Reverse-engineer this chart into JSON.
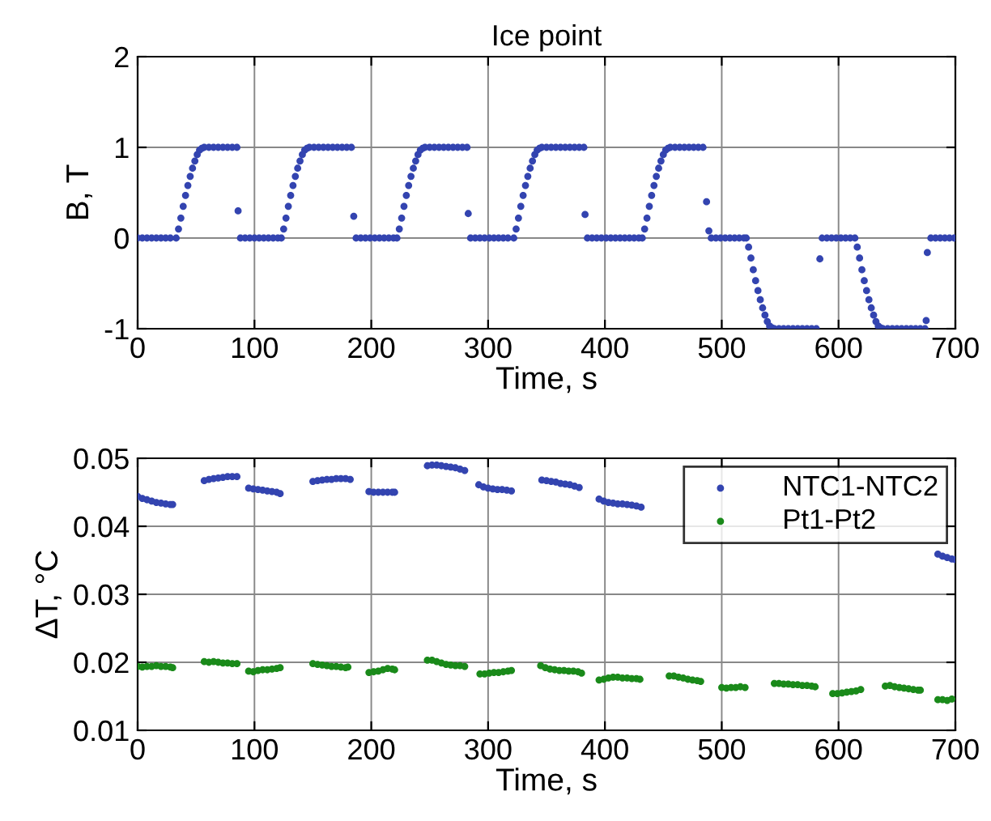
{
  "chart_data": [
    {
      "type": "scatter",
      "title": "Ice point",
      "xlabel": "Time, s",
      "ylabel": "B, T",
      "xlim": [
        0,
        700
      ],
      "xticks": [
        0,
        100,
        200,
        300,
        400,
        500,
        600,
        700
      ],
      "ylim": [
        -1,
        2
      ],
      "yticks": [
        -1,
        0,
        1,
        2
      ],
      "grid": true,
      "marker": "circle",
      "legend": false,
      "series": [
        {
          "color": "#3344b0",
          "x": [
            0,
            4,
            8,
            12,
            16,
            20,
            24,
            28,
            33,
            35,
            37,
            39,
            41,
            43,
            45,
            47,
            49,
            51,
            53,
            55,
            57,
            61,
            65,
            69,
            73,
            77,
            81,
            85,
            86,
            88,
            92,
            96,
            100,
            104,
            108,
            112,
            116,
            120,
            123,
            125,
            127,
            129,
            131,
            133,
            135,
            137,
            139,
            141,
            143,
            145,
            147,
            151,
            155,
            159,
            163,
            167,
            171,
            175,
            179,
            183,
            185,
            187,
            191,
            195,
            199,
            203,
            207,
            211,
            215,
            219,
            222,
            224,
            226,
            228,
            230,
            232,
            234,
            236,
            238,
            240,
            242,
            244,
            246,
            250,
            254,
            258,
            262,
            266,
            270,
            274,
            278,
            282,
            283,
            285,
            289,
            293,
            297,
            301,
            305,
            309,
            313,
            317,
            322,
            324,
            326,
            328,
            330,
            332,
            334,
            336,
            338,
            340,
            342,
            344,
            346,
            350,
            354,
            358,
            362,
            366,
            370,
            374,
            378,
            382,
            383,
            385,
            389,
            393,
            397,
            401,
            405,
            409,
            413,
            417,
            421,
            425,
            429,
            432,
            434,
            436,
            438,
            440,
            442,
            444,
            446,
            448,
            450,
            452,
            454,
            456,
            460,
            464,
            468,
            472,
            476,
            480,
            484,
            487,
            489,
            491,
            495,
            499,
            503,
            507,
            511,
            515,
            519,
            521,
            523,
            525,
            527,
            529,
            531,
            533,
            535,
            537,
            539,
            541,
            543,
            545,
            549,
            553,
            557,
            561,
            565,
            569,
            573,
            577,
            581,
            584,
            586,
            590,
            594,
            598,
            602,
            606,
            610,
            614,
            616,
            618,
            620,
            622,
            624,
            626,
            628,
            630,
            632,
            634,
            636,
            638,
            642,
            646,
            650,
            654,
            658,
            662,
            666,
            670,
            674,
            675,
            676,
            679,
            683,
            687,
            691,
            695,
            699
          ],
          "values": [
            0,
            0,
            0,
            0,
            0,
            0,
            0,
            0,
            0,
            0.1,
            0.22,
            0.35,
            0.47,
            0.58,
            0.68,
            0.77,
            0.85,
            0.92,
            0.97,
            0.99,
            1,
            1,
            1,
            1,
            1,
            1,
            1,
            1,
            0.3,
            0,
            0,
            0,
            0,
            0,
            0,
            0,
            0,
            0,
            0,
            0.1,
            0.22,
            0.35,
            0.47,
            0.58,
            0.68,
            0.77,
            0.85,
            0.92,
            0.97,
            0.99,
            1,
            1,
            1,
            1,
            1,
            1,
            1,
            1,
            1,
            1,
            0.24,
            0,
            0,
            0,
            0,
            0,
            0,
            0,
            0,
            0,
            0,
            0.1,
            0.22,
            0.35,
            0.47,
            0.58,
            0.68,
            0.77,
            0.85,
            0.92,
            0.97,
            0.99,
            1,
            1,
            1,
            1,
            1,
            1,
            1,
            1,
            1,
            1,
            0.27,
            0,
            0,
            0,
            0,
            0,
            0,
            0,
            0,
            0,
            0,
            0.1,
            0.22,
            0.35,
            0.47,
            0.58,
            0.68,
            0.77,
            0.85,
            0.92,
            0.97,
            0.99,
            1,
            1,
            1,
            1,
            1,
            1,
            1,
            1,
            1,
            1,
            0.26,
            0,
            0,
            0,
            0,
            0,
            0,
            0,
            0,
            0,
            0,
            0,
            0,
            0,
            0.1,
            0.22,
            0.35,
            0.47,
            0.58,
            0.68,
            0.77,
            0.85,
            0.92,
            0.97,
            0.99,
            1,
            1,
            1,
            1,
            1,
            1,
            1,
            1,
            0.4,
            0.08,
            0,
            0,
            0,
            0,
            0,
            0,
            0,
            0,
            0,
            -0.1,
            -0.22,
            -0.35,
            -0.47,
            -0.58,
            -0.68,
            -0.77,
            -0.85,
            -0.92,
            -0.97,
            -0.99,
            -1,
            -1,
            -1,
            -1,
            -1,
            -1,
            -1,
            -1,
            -1,
            -1,
            -0.23,
            0,
            0,
            0,
            0,
            0,
            0,
            0,
            0,
            -0.1,
            -0.22,
            -0.35,
            -0.47,
            -0.58,
            -0.68,
            -0.77,
            -0.85,
            -0.92,
            -0.97,
            -0.99,
            -1,
            -1,
            -1,
            -1,
            -1,
            -1,
            -1,
            -1,
            -1,
            -1,
            -0.91,
            -0.16,
            0,
            0,
            0,
            0,
            0,
            0
          ]
        }
      ]
    },
    {
      "type": "scatter",
      "xlabel": "Time, s",
      "ylabel": "ΔT, °C",
      "xlim": [
        0,
        700
      ],
      "xticks": [
        0,
        100,
        200,
        300,
        400,
        500,
        600,
        700
      ],
      "ylim": [
        0.01,
        0.05
      ],
      "yticks": [
        0.01,
        0.02,
        0.03,
        0.04,
        0.05
      ],
      "grid": true,
      "marker": "circle",
      "legend": "top right",
      "series": [
        {
          "name": "NTC1-NTC2",
          "color": "#3344b0",
          "x": [
            0,
            4,
            8,
            12,
            16,
            20,
            24,
            28,
            30,
            57,
            61,
            65,
            69,
            73,
            77,
            81,
            85,
            95,
            99,
            103,
            107,
            111,
            115,
            119,
            122,
            150,
            154,
            158,
            162,
            166,
            170,
            174,
            178,
            182,
            198,
            202,
            206,
            210,
            214,
            218,
            220,
            248,
            252,
            256,
            260,
            264,
            268,
            272,
            276,
            280,
            292,
            296,
            300,
            304,
            308,
            312,
            316,
            320,
            346,
            350,
            354,
            358,
            362,
            366,
            370,
            374,
            378,
            395,
            399,
            403,
            407,
            411,
            415,
            419,
            423,
            427,
            431,
            685,
            689,
            693,
            697,
            700
          ],
          "values": [
            0.0444,
            0.0441,
            0.0439,
            0.0437,
            0.0435,
            0.0434,
            0.0433,
            0.0432,
            0.0432,
            0.0467,
            0.0469,
            0.047,
            0.0471,
            0.0472,
            0.0473,
            0.0473,
            0.0473,
            0.0456,
            0.0455,
            0.0454,
            0.0453,
            0.0452,
            0.0451,
            0.045,
            0.0448,
            0.0466,
            0.0467,
            0.0468,
            0.0469,
            0.0469,
            0.047,
            0.047,
            0.047,
            0.0469,
            0.0451,
            0.045,
            0.045,
            0.045,
            0.045,
            0.045,
            0.045,
            0.0489,
            0.049,
            0.049,
            0.0489,
            0.0488,
            0.0487,
            0.0486,
            0.0484,
            0.0482,
            0.0461,
            0.0458,
            0.0456,
            0.0455,
            0.0454,
            0.0454,
            0.0453,
            0.0452,
            0.0468,
            0.0467,
            0.0466,
            0.0465,
            0.0463,
            0.0462,
            0.0461,
            0.0459,
            0.0457,
            0.044,
            0.0437,
            0.0435,
            0.0434,
            0.0433,
            0.0433,
            0.0432,
            0.0431,
            0.043,
            0.0428,
            0.0359,
            0.0356,
            0.0354,
            0.0352,
            0.0351
          ]
        },
        {
          "name": "Pt1-Pt2",
          "color": "#1a8a1a",
          "x": [
            0,
            4,
            8,
            12,
            16,
            20,
            24,
            28,
            30,
            57,
            61,
            65,
            69,
            73,
            77,
            81,
            85,
            95,
            99,
            103,
            107,
            111,
            115,
            119,
            122,
            150,
            154,
            158,
            162,
            166,
            170,
            174,
            178,
            180,
            198,
            202,
            206,
            210,
            214,
            218,
            220,
            248,
            252,
            256,
            260,
            264,
            268,
            272,
            276,
            280,
            293,
            297,
            301,
            305,
            309,
            313,
            317,
            320,
            345,
            349,
            353,
            357,
            361,
            365,
            369,
            373,
            377,
            380,
            395,
            399,
            403,
            407,
            411,
            415,
            419,
            423,
            427,
            430,
            455,
            459,
            463,
            467,
            471,
            475,
            479,
            482,
            500,
            504,
            508,
            512,
            516,
            520,
            545,
            549,
            553,
            557,
            561,
            565,
            569,
            573,
            577,
            580,
            595,
            599,
            603,
            607,
            611,
            615,
            619,
            640,
            644,
            648,
            652,
            656,
            660,
            664,
            668,
            670,
            685,
            689,
            693,
            697
          ],
          "values": [
            0.0194,
            0.0193,
            0.0194,
            0.0194,
            0.0195,
            0.0194,
            0.0194,
            0.0193,
            0.0192,
            0.0201,
            0.02,
            0.0201,
            0.02,
            0.0199,
            0.0199,
            0.0198,
            0.0198,
            0.0187,
            0.0186,
            0.0188,
            0.0189,
            0.0189,
            0.019,
            0.0191,
            0.0192,
            0.0198,
            0.0197,
            0.0196,
            0.0195,
            0.0194,
            0.0194,
            0.0193,
            0.0192,
            0.0193,
            0.0185,
            0.0186,
            0.0187,
            0.0189,
            0.0191,
            0.019,
            0.0189,
            0.0203,
            0.0203,
            0.0201,
            0.0199,
            0.0197,
            0.0196,
            0.0195,
            0.0195,
            0.0194,
            0.0183,
            0.0183,
            0.0184,
            0.0185,
            0.0185,
            0.0186,
            0.0187,
            0.0188,
            0.0195,
            0.0192,
            0.019,
            0.0189,
            0.0188,
            0.0188,
            0.0187,
            0.0187,
            0.0186,
            0.0184,
            0.0174,
            0.0175,
            0.0177,
            0.0178,
            0.0178,
            0.0177,
            0.0177,
            0.0176,
            0.0176,
            0.0175,
            0.018,
            0.018,
            0.0178,
            0.0177,
            0.0175,
            0.0174,
            0.0173,
            0.0172,
            0.0163,
            0.0162,
            0.0163,
            0.0163,
            0.0164,
            0.0163,
            0.0169,
            0.0169,
            0.0168,
            0.0168,
            0.0167,
            0.0167,
            0.0166,
            0.0166,
            0.0165,
            0.0164,
            0.0154,
            0.0154,
            0.0155,
            0.0156,
            0.0157,
            0.0158,
            0.016,
            0.0165,
            0.0166,
            0.0164,
            0.0163,
            0.0162,
            0.0161,
            0.016,
            0.0159,
            0.0159,
            0.0145,
            0.0145,
            0.0144,
            0.0146
          ]
        }
      ]
    }
  ]
}
